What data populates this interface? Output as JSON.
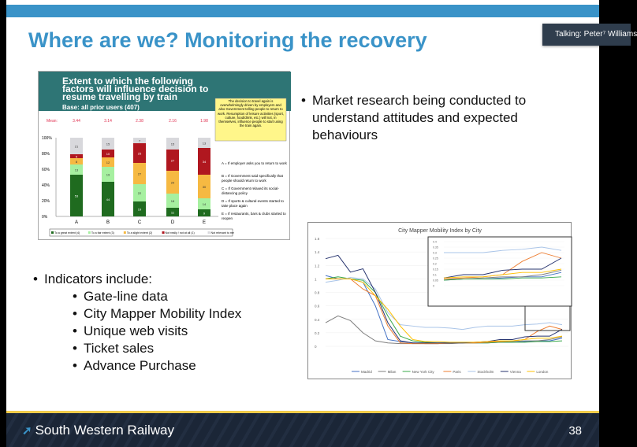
{
  "slide": {
    "title": "Where are we? Monitoring the recovery",
    "page_number": "38",
    "brand": "South Western Railway",
    "talking": "Talking: Peter⁷ Williams"
  },
  "bullets_right": [
    "Market research being conducted to understand attitudes and expected behaviours"
  ],
  "bullets_left": {
    "heading": "Indicators include:",
    "items": [
      "Gate-line data",
      "City Mapper Mobility Index",
      "Unique web visits",
      "Ticket sales",
      "Advance Purchase"
    ]
  },
  "chart_data": [
    {
      "type": "bar",
      "stacked": true,
      "title": "Extent to which the following factors will influence decision to resume travelling by train",
      "subtitle": "Base: all prior users (407)",
      "categories": [
        "A",
        "B",
        "C",
        "D",
        "E"
      ],
      "means": [
        "3.44",
        "3.14",
        "2.38",
        "2.16",
        "1.98"
      ],
      "mean_label": "Mean:",
      "yticks": [
        "0%",
        "20%",
        "40%",
        "60%",
        "80%",
        "100%"
      ],
      "series": [
        {
          "name": "To a great extent (4)",
          "color": "#1f6b1f",
          "values": [
            53,
            44,
            19,
            11,
            9
          ]
        },
        {
          "name": "To a fair extent (3)",
          "color": "#a6f0a0",
          "values": [
            13,
            19,
            22,
            18,
            14
          ]
        },
        {
          "name": "To a slight extent (2)",
          "color": "#f6b942",
          "values": [
            8,
            12,
            27,
            29,
            30
          ]
        },
        {
          "name": "Not really / not at all (1)",
          "color": "#b0171f",
          "values": [
            5,
            10,
            25,
            27,
            34
          ]
        },
        {
          "name": "Not relevant to me",
          "color": "#d8d8dc",
          "values": [
            21,
            15,
            7,
            15,
            13
          ]
        }
      ],
      "callout": "The decision to travel again is overwhelmingly driven by employers and also Government telling people to return to work. Resumption of leisure activities (sport, culture, food/drink, etc.) will not, in themselves, influence people to start using the train again.",
      "key": [
        "A = If employer asks you to return to work",
        "B = If Government said specifically that people should return to work",
        "C = If Government relaxed its social-distancing policy",
        "D = If sports & cultural events started to take place again",
        "E = If restaurants, bars & clubs started to reopen"
      ]
    },
    {
      "type": "line",
      "title": "City Mapper Mobility Index by City",
      "ylim": [
        0,
        1.6
      ],
      "yticks": [
        "0",
        "0.2",
        "0.4",
        "0.6",
        "0.8",
        "1",
        "1.2",
        "1.4",
        "1.6"
      ],
      "series": [
        {
          "name": "Madrid",
          "color": "#4472c4",
          "values": [
            1.05,
            1.0,
            1.0,
            0.95,
            0.6,
            0.1,
            0.07,
            0.05,
            0.04,
            0.04,
            0.05,
            0.05,
            0.05,
            0.05,
            0.06,
            0.06,
            0.07,
            0.08,
            0.08,
            0.12
          ]
        },
        {
          "name": "Milan",
          "color": "#7f7f7f",
          "values": [
            0.35,
            0.45,
            0.38,
            0.2,
            0.08,
            0.05,
            0.04,
            0.04,
            0.04,
            0.04,
            0.04,
            0.05,
            0.05,
            0.06,
            0.06,
            0.07,
            0.08,
            0.08,
            0.1,
            0.14
          ]
        },
        {
          "name": "New York City",
          "color": "#3aa84a",
          "values": [
            1.0,
            1.03,
            1.0,
            0.98,
            0.8,
            0.45,
            0.15,
            0.08,
            0.06,
            0.05,
            0.05,
            0.05,
            0.05,
            0.05,
            0.06,
            0.06,
            0.06,
            0.07,
            0.07,
            0.08
          ]
        },
        {
          "name": "Paris",
          "color": "#ed7d31",
          "values": [
            1.0,
            1.0,
            1.0,
            0.85,
            0.75,
            0.3,
            0.05,
            0.04,
            0.04,
            0.04,
            0.05,
            0.05,
            0.05,
            0.06,
            0.07,
            0.08,
            0.1,
            0.22,
            0.3,
            0.25
          ]
        },
        {
          "name": "Stockholm",
          "color": "#a9c4e8",
          "values": [
            0.95,
            0.98,
            1.02,
            1.0,
            0.85,
            0.5,
            0.32,
            0.3,
            0.28,
            0.28,
            0.27,
            0.25,
            0.28,
            0.3,
            0.3,
            0.3,
            0.32,
            0.33,
            0.35,
            0.32
          ]
        },
        {
          "name": "Vienna",
          "color": "#26336e",
          "values": [
            1.3,
            1.35,
            1.1,
            1.15,
            0.8,
            0.35,
            0.08,
            0.05,
            0.05,
            0.05,
            0.05,
            0.05,
            0.06,
            0.07,
            0.1,
            0.1,
            0.14,
            0.15,
            0.15,
            0.25
          ]
        },
        {
          "name": "London",
          "color": "#ffc000",
          "values": [
            1.0,
            1.0,
            1.0,
            0.95,
            0.75,
            0.55,
            0.3,
            0.1,
            0.07,
            0.07,
            0.06,
            0.06,
            0.06,
            0.07,
            0.08,
            0.08,
            0.1,
            0.12,
            0.12,
            0.15
          ]
        }
      ],
      "inset_yticks": [
        "0",
        "0.05",
        "0.1",
        "0.15",
        "0.2",
        "0.25",
        "0.3",
        "0.35",
        "0.4"
      ]
    }
  ]
}
